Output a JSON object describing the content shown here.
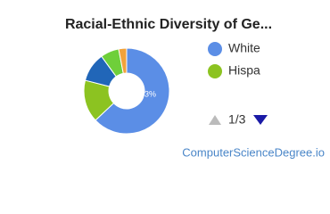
{
  "chart_data": {
    "type": "pie",
    "title": "Racial-Ethnic Diversity of Ge...",
    "categories": [
      "White",
      "Hispa",
      null,
      null,
      null
    ],
    "values": [
      63,
      16,
      11,
      7,
      3
    ],
    "value_labels": [
      "63%",
      null,
      null,
      null,
      null
    ],
    "colors": [
      "#5b8ee6",
      "#8cc321",
      "#2166b8",
      "#6fcf3a",
      "#f2a23a"
    ],
    "legend_page": "1/3",
    "source": "ComputerScienceDegree.io"
  }
}
